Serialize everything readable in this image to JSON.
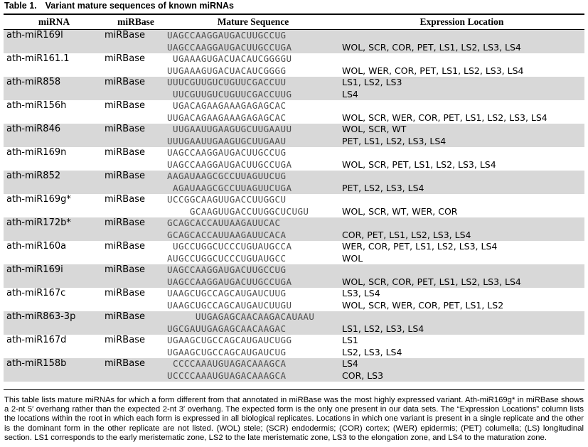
{
  "table": {
    "caption_label": "Table 1.",
    "caption_title": "Variant mature sequences of known miRNAs",
    "columns": [
      "miRNA",
      "miRBase",
      "Mature Sequence",
      "Expression Location"
    ],
    "rows": [
      {
        "mirna": "ath-miR169l",
        "db": "miRBase",
        "seq1": "UAGCCAAGGAUGACUUGCCUG",
        "seq2": "UAGCCAAGGAUGACUUGCCUGA",
        "loc1": "",
        "loc2": "WOL, SCR, COR, PET, LS1, LS2, LS3, LS4"
      },
      {
        "mirna": "ath-miR161.1",
        "db": "miRBase",
        "seq1": " UGAAAGUGACUACAUCGGGGU",
        "seq2": "UUGAAAGUGACUACAUCGGGG",
        "loc1": "",
        "loc2": "WOL, WER, COR, PET, LS1, LS2, LS3, LS4"
      },
      {
        "mirna": "ath-miR858",
        "db": "miRBase",
        "seq1": "UUUCGUUGUCUGUUCGACCUU",
        "seq2": " UUCGUUGUCUGUUCGACCUUG",
        "loc1": "LS1, LS2, LS3",
        "loc2": "LS4"
      },
      {
        "mirna": "ath-miR156h",
        "db": "miRBase",
        "seq1": " UGACAGAAGAAAGAGAGCAC",
        "seq2": "UUGACAGAAGAAAGAGAGCAC",
        "loc1": "",
        "loc2": "WOL, SCR, WER, COR, PET, LS1, LS2, LS3, LS4"
      },
      {
        "mirna": "ath-miR846",
        "db": "miRBase",
        "seq1": " UUGAAUUGAAGUGCUUGAAUU",
        "seq2": "UUUGAAUUGAAGUGCUUGAAU",
        "loc1": "WOL, SCR, WT",
        "loc2": "PET, LS1, LS2, LS3, LS4"
      },
      {
        "mirna": "ath-miR169n",
        "db": "miRBase",
        "seq1": "UAGCCAAGGAUGACUUGCCUG",
        "seq2": "UAGCCAAGGAUGACUUGCCUGA",
        "loc1": "",
        "loc2": "WOL, SCR, PET, LS1, LS2, LS3, LS4"
      },
      {
        "mirna": "ath-miR852",
        "db": "miRBase",
        "seq1": "AAGAUAAGCGCCUUAGUUCUG",
        "seq2": " AGAUAAGCGCCUUAGUUCUGA",
        "loc1": "",
        "loc2": "PET, LS2, LS3, LS4"
      },
      {
        "mirna": "ath-miR169g*",
        "db": "miRBase",
        "seq1": "UCCGGCAAGUUGACCUUGGCU",
        "seq2": "    GCAAGUUGACCUUGGCUCUGU",
        "loc1": "",
        "loc2": "WOL, SCR, WT, WER, COR"
      },
      {
        "mirna": "ath-miR172b*",
        "db": "miRBase",
        "seq1": "GCAGCACCAUUAAGAUUCAC",
        "seq2": "GCAGCACCAUUAAGAUUCACA",
        "loc1": "",
        "loc2": "COR, PET, LS1, LS2, LS3, LS4"
      },
      {
        "mirna": "ath-miR160a",
        "db": "miRBase",
        "seq1": " UGCCUGGCUCCCUGUAUGCCA",
        "seq2": "AUGCCUGGCUCCCUGUAUGCC",
        "loc1": "WER, COR, PET, LS1, LS2, LS3, LS4",
        "loc2": "WOL"
      },
      {
        "mirna": "ath-miR169i",
        "db": "miRBase",
        "seq1": "UAGCCAAGGAUGACUUGCCUG",
        "seq2": "UAGCCAAGGAUGACUUGCCUGA",
        "loc1": "",
        "loc2": "WOL, SCR, COR, PET, LS1, LS2, LS3, LS4"
      },
      {
        "mirna": "ath-miR167c",
        "db": "miRBase",
        "seq1": "UAAGCUGCCAGCAUGAUCUUG",
        "seq2": "UAAGCUGCCAGCAUGAUCUUGU",
        "loc1": "LS3, LS4",
        "loc2": "WOL, SCR, WER, COR, PET, LS1, LS2"
      },
      {
        "mirna": "ath-miR863-3p",
        "db": "miRBase",
        "seq1": "     UUGAGAGCAACAAGACAUAAU",
        "seq2": "UGCGAUUGAGAGCAACAAGAC",
        "loc1": "",
        "loc2": "LS1, LS2, LS3, LS4"
      },
      {
        "mirna": "ath-miR167d",
        "db": "miRBase",
        "seq1": "UGAAGCUGCCAGCAUGAUCUGG",
        "seq2": "UGAAGCUGCCAGCAUGAUCUG",
        "loc1": "LS1",
        "loc2": "LS2, LS3, LS4"
      },
      {
        "mirna": "ath-miR158b",
        "db": "miRBase",
        "seq1": " CCCCAAAUGUAGACAAAGCA",
        "seq2": "UCCCCAAAUGUAGACAAAGCA",
        "loc1": "LS4",
        "loc2": "COR, LS3"
      }
    ],
    "footnote": "This table lists mature miRNAs for which a form different from that annotated in miRBase was the most highly expressed variant. Ath-miR169g* in miRBase shows a 2-nt 5′ overhang rather than the expected 2-nt 3′ overhang. The expected form is the only one present in our data sets. The “Expression Locations” column lists the locations within the root in which each form is expressed in all biological replicates. Locations in which one variant is present in a single replicate and the other is the dominant form in the other replicate are not listed. (WOL) stele; (SCR) endodermis; (COR) cortex; (WER) epidermis; (PET) columella; (LS) longitudinal section. LS1 corresponds to the early meristematic zone, LS2 to the late meristematic zone, LS3 to the elongation zone, and LS4 to the maturation zone."
  },
  "colors": {
    "row_shade": "#d8d8d8",
    "sequence_text": "#4e4e4e"
  }
}
